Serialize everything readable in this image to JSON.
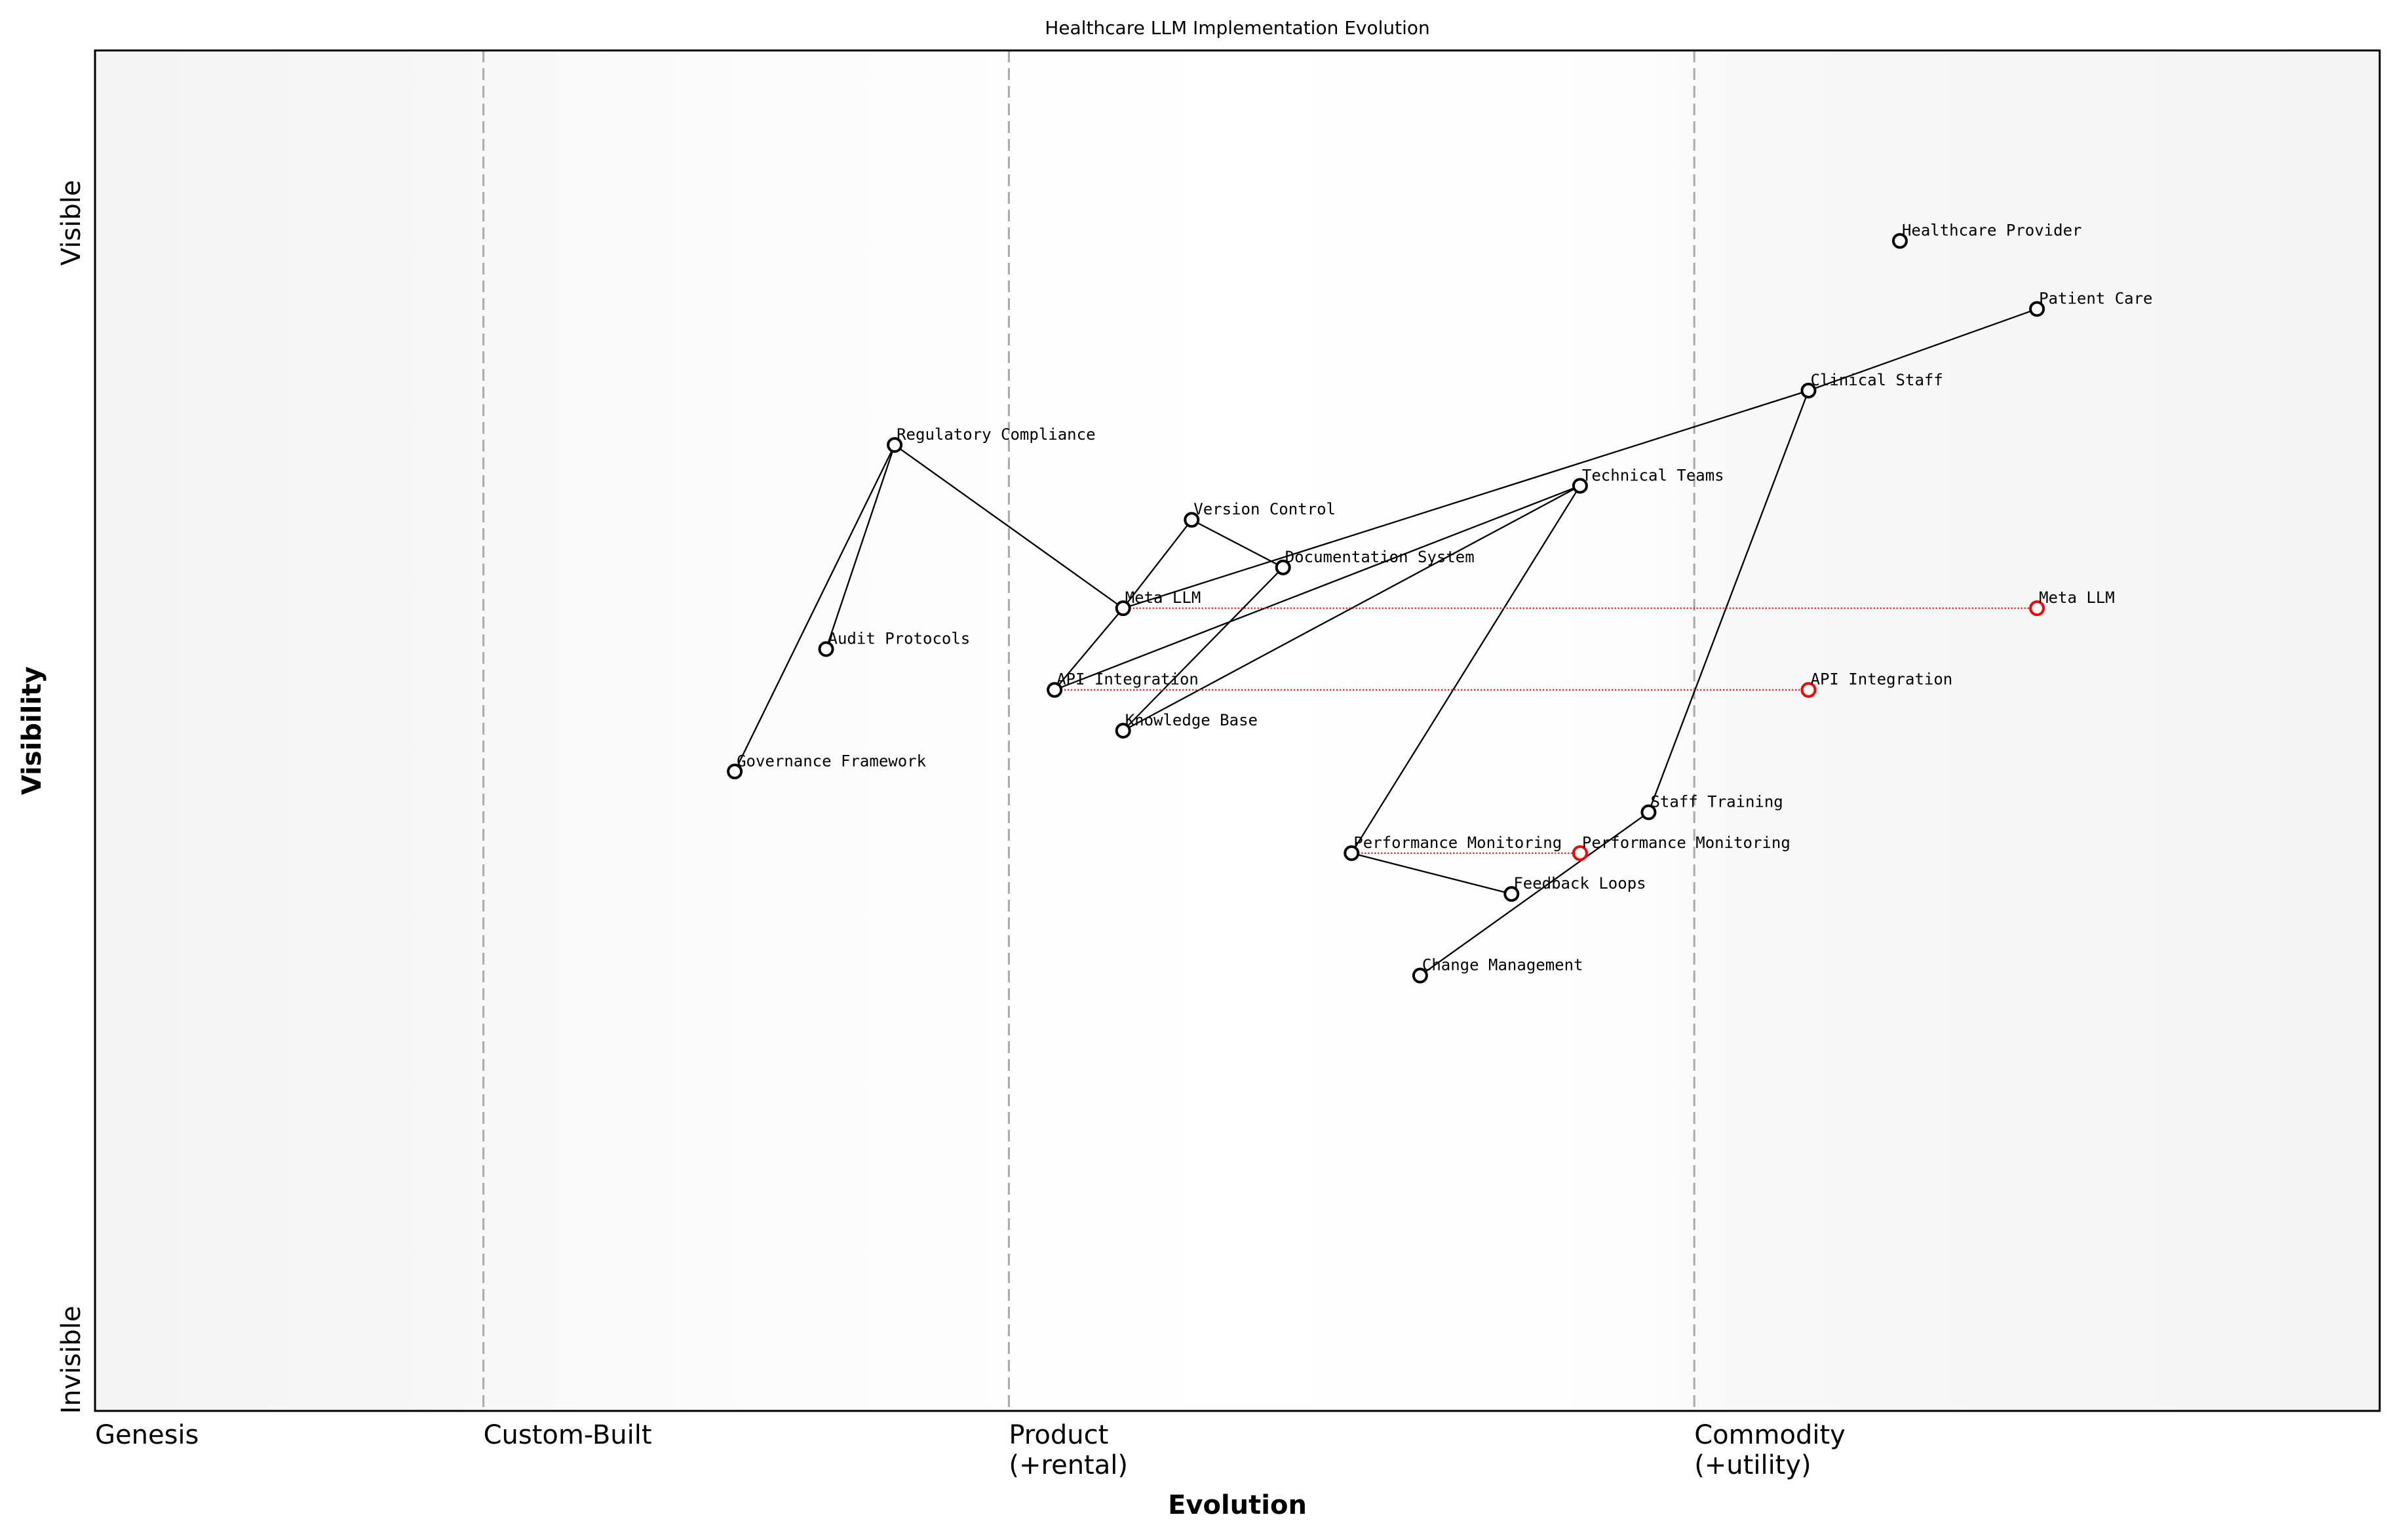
{
  "chart_data": {
    "type": "wardley-map",
    "title": "Healthcare LLM Implementation Evolution",
    "xlabel": "Evolution",
    "ylabel": "Visibility",
    "xlim": [
      0,
      1
    ],
    "ylim": [
      0,
      1
    ],
    "y_top_label": "Visible",
    "y_bottom_label": "Invisible",
    "stages": [
      {
        "label": "Genesis",
        "x": 0.0
      },
      {
        "label": "Custom-Built",
        "x": 0.17
      },
      {
        "label": "Product\n(+rental)",
        "x": 0.4
      },
      {
        "label": "Commodity\n(+utility)",
        "x": 0.7
      }
    ],
    "components": [
      {
        "name": "Healthcare Provider",
        "evolution": 0.79,
        "visibility": 0.86
      },
      {
        "name": "Patient Care",
        "evolution": 0.85,
        "visibility": 0.81
      },
      {
        "name": "Clinical Staff",
        "evolution": 0.75,
        "visibility": 0.75
      },
      {
        "name": "Technical Teams",
        "evolution": 0.65,
        "visibility": 0.68
      },
      {
        "name": "Regulatory Compliance",
        "evolution": 0.35,
        "visibility": 0.71
      },
      {
        "name": "Version Control",
        "evolution": 0.48,
        "visibility": 0.655
      },
      {
        "name": "Documentation System",
        "evolution": 0.52,
        "visibility": 0.62
      },
      {
        "name": "Meta LLM",
        "evolution": 0.45,
        "visibility": 0.59
      },
      {
        "name": "Audit Protocols",
        "evolution": 0.32,
        "visibility": 0.56
      },
      {
        "name": "API Integration",
        "evolution": 0.42,
        "visibility": 0.53
      },
      {
        "name": "Knowledge Base",
        "evolution": 0.45,
        "visibility": 0.5
      },
      {
        "name": "Governance Framework",
        "evolution": 0.28,
        "visibility": 0.47
      },
      {
        "name": "Staff Training",
        "evolution": 0.68,
        "visibility": 0.44
      },
      {
        "name": "Performance Monitoring",
        "evolution": 0.55,
        "visibility": 0.41
      },
      {
        "name": "Feedback Loops",
        "evolution": 0.62,
        "visibility": 0.38
      },
      {
        "name": "Change Management",
        "evolution": 0.58,
        "visibility": 0.32
      }
    ],
    "links": [
      [
        "Patient Care",
        "Clinical Staff"
      ],
      [
        "Clinical Staff",
        "Meta LLM"
      ],
      [
        "Clinical Staff",
        "Staff Training"
      ],
      [
        "Staff Training",
        "Change Management"
      ],
      [
        "Technical Teams",
        "API Integration"
      ],
      [
        "Technical Teams",
        "Knowledge Base"
      ],
      [
        "Technical Teams",
        "Performance Monitoring"
      ],
      [
        "Performance Monitoring",
        "Feedback Loops"
      ],
      [
        "Regulatory Compliance",
        "Governance Framework"
      ],
      [
        "Regulatory Compliance",
        "Audit Protocols"
      ],
      [
        "Regulatory Compliance",
        "Meta LLM"
      ],
      [
        "Meta LLM",
        "Version Control"
      ],
      [
        "Meta LLM",
        "API Integration"
      ],
      [
        "Version Control",
        "Documentation System"
      ],
      [
        "Documentation System",
        "Knowledge Base"
      ]
    ],
    "evolutions": [
      {
        "name": "Meta LLM",
        "to_evolution": 0.85
      },
      {
        "name": "API Integration",
        "to_evolution": 0.75
      },
      {
        "name": "Performance Monitoring",
        "to_evolution": 0.65
      }
    ],
    "colors": {
      "node": "#000000",
      "evolved": "#ff0000",
      "stage_line": "#aaaaaa",
      "band_edge": "#f4f4f4",
      "band_mid": "#ffffff"
    }
  }
}
